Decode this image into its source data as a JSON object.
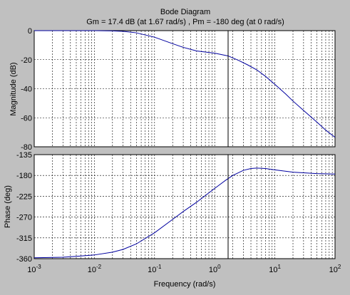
{
  "chart_data": [
    {
      "type": "line",
      "title": "Bode Diagram",
      "subtitle": "Gm = 17.4 dB (at 1.67 rad/s) ,  Pm = -180 deg (at 0 rad/s)",
      "panel": "magnitude",
      "xlabel": "",
      "ylabel": "Magnitude (dB)",
      "xscale": "log",
      "xlim": [
        0.001,
        100
      ],
      "ylim": [
        -80,
        0
      ],
      "yticks": [
        0,
        -20,
        -40,
        -60,
        -80
      ],
      "grid": true,
      "line_color": "#0000a0",
      "marker_x": 1.67,
      "series": [
        {
          "x": [
            0.001,
            0.003,
            0.01,
            0.02,
            0.03,
            0.05,
            0.1,
            0.2,
            0.3,
            0.5,
            1.0,
            1.67,
            2.5,
            3.5,
            5.0,
            7.0,
            10,
            15,
            20,
            30,
            50,
            70,
            100
          ],
          "values": [
            0,
            0,
            0,
            -0.2,
            -0.5,
            -1.5,
            -4.5,
            -9.0,
            -11.5,
            -14.0,
            -15.5,
            -17.4,
            -20.5,
            -23.5,
            -27.0,
            -31.5,
            -37.0,
            -43.5,
            -48.5,
            -55.0,
            -63.0,
            -68.5,
            -73.5
          ]
        }
      ]
    },
    {
      "type": "line",
      "panel": "phase",
      "xlabel": "Frequency  (rad/s)",
      "ylabel": "Phase (deg)",
      "xscale": "log",
      "xlim": [
        0.001,
        100
      ],
      "ylim": [
        -360,
        -135
      ],
      "yticks": [
        -135,
        -180,
        -225,
        -270,
        -315,
        -360
      ],
      "xtick_labels": [
        "10",
        "10",
        "10",
        "10",
        "10",
        "10"
      ],
      "xtick_exponents": [
        "-3",
        "-2",
        "-1",
        "0",
        "1",
        "2"
      ],
      "grid": true,
      "line_color": "#0000a0",
      "marker_x": 1.67,
      "series": [
        {
          "x": [
            0.001,
            0.003,
            0.005,
            0.01,
            0.02,
            0.03,
            0.05,
            0.1,
            0.2,
            0.3,
            0.5,
            1.0,
            1.5,
            2.0,
            3.0,
            4.0,
            5.0,
            7.0,
            10,
            20,
            50,
            100
          ],
          "values": [
            -358,
            -357,
            -355,
            -352,
            -346,
            -340,
            -328,
            -304,
            -275,
            -258,
            -238,
            -208,
            -191,
            -180,
            -169,
            -165,
            -164,
            -165,
            -168,
            -173,
            -176,
            -177
          ]
        }
      ]
    }
  ]
}
